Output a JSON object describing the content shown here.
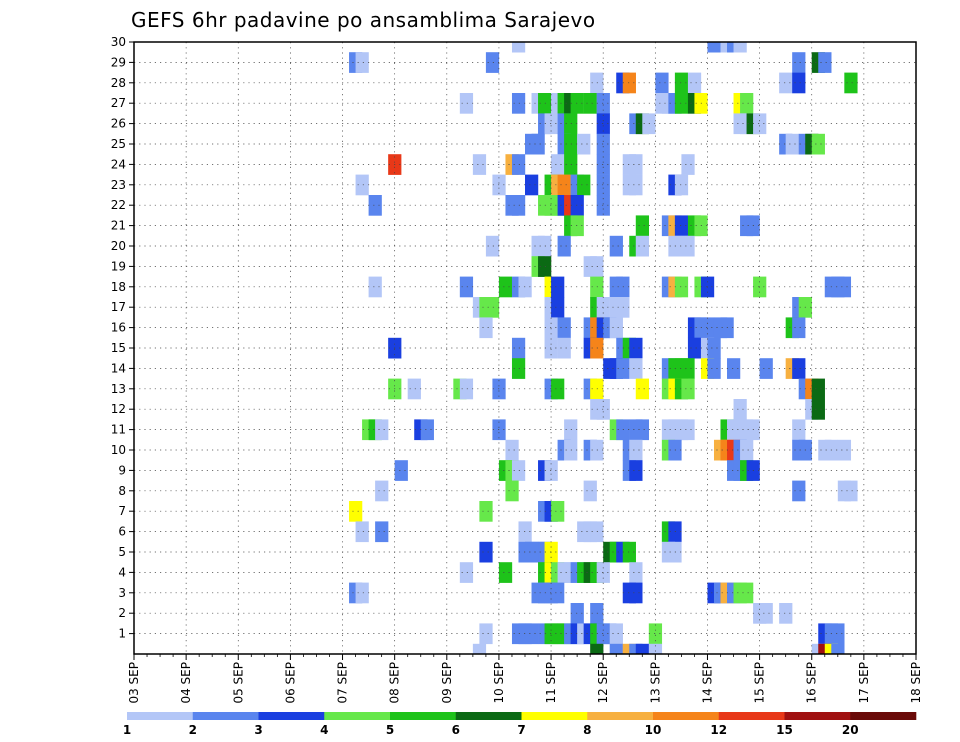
{
  "chart_data": {
    "type": "heatmap",
    "title": "GEFS 6hr padavine po ansamblima Sarajevo",
    "xlabel": "",
    "ylabel": "",
    "x_ticks": [
      "03 SEP",
      "04 SEP",
      "05 SEP",
      "06 SEP",
      "07 SEP",
      "08 SEP",
      "09 SEP",
      "10 SEP",
      "11 SEP",
      "12 SEP",
      "13 SEP",
      "14 SEP",
      "15 SEP",
      "16 SEP",
      "17 SEP",
      "18 SEP"
    ],
    "y_ticks": [
      1,
      2,
      3,
      4,
      5,
      6,
      7,
      8,
      9,
      10,
      11,
      12,
      13,
      14,
      15,
      16,
      17,
      18,
      19,
      20,
      21,
      22,
      23,
      24,
      25,
      26,
      27,
      28,
      29,
      30
    ],
    "xlim_days": [
      0,
      15
    ],
    "ylim": [
      0,
      30
    ],
    "time_step_hours": 6,
    "grid": true,
    "colorbar": {
      "placement": "bottom",
      "bounds": [
        1,
        2,
        3,
        4,
        5,
        6,
        7,
        8,
        10,
        12,
        15,
        20
      ],
      "colors": [
        "#b3c6f7",
        "#5a85ee",
        "#1a3fe0",
        "#66e84a",
        "#1ec31a",
        "#0b6a14",
        "#ffff00",
        "#f7b040",
        "#f5841a",
        "#e83818",
        "#a01010",
        "#6a0a08"
      ]
    },
    "cells": [
      [
        58,
        30,
        0
      ],
      [
        88,
        30,
        1
      ],
      [
        90,
        30,
        0
      ],
      [
        91,
        30,
        1
      ],
      [
        92,
        30,
        0
      ],
      [
        33,
        29,
        1
      ],
      [
        34,
        29,
        0
      ],
      [
        54,
        29,
        1
      ],
      [
        101,
        29,
        1
      ],
      [
        104,
        29,
        5
      ],
      [
        105,
        29,
        1
      ],
      [
        70,
        28,
        0
      ],
      [
        74,
        28,
        2
      ],
      [
        75,
        28,
        8
      ],
      [
        80,
        28,
        1
      ],
      [
        83,
        28,
        4
      ],
      [
        85,
        28,
        0
      ],
      [
        99,
        28,
        0
      ],
      [
        101,
        28,
        2
      ],
      [
        109,
        28,
        4
      ],
      [
        50,
        27,
        0
      ],
      [
        58,
        27,
        1
      ],
      [
        61,
        27,
        0
      ],
      [
        62,
        27,
        4
      ],
      [
        64,
        27,
        0
      ],
      [
        65,
        27,
        4
      ],
      [
        66,
        27,
        5
      ],
      [
        67,
        27,
        4
      ],
      [
        69,
        27,
        4
      ],
      [
        71,
        27,
        1
      ],
      [
        80,
        27,
        0
      ],
      [
        81,
        27,
        0
      ],
      [
        82,
        27,
        1
      ],
      [
        83,
        27,
        4
      ],
      [
        85,
        27,
        5
      ],
      [
        86,
        27,
        6
      ],
      [
        92,
        27,
        6
      ],
      [
        93,
        27,
        3
      ],
      [
        62,
        26,
        1
      ],
      [
        63,
        26,
        0
      ],
      [
        65,
        26,
        1
      ],
      [
        66,
        26,
        4
      ],
      [
        71,
        26,
        2
      ],
      [
        76,
        26,
        1
      ],
      [
        77,
        26,
        5
      ],
      [
        78,
        26,
        0
      ],
      [
        92,
        26,
        0
      ],
      [
        93,
        26,
        0
      ],
      [
        94,
        26,
        5
      ],
      [
        95,
        26,
        0
      ],
      [
        60,
        25,
        1
      ],
      [
        61,
        25,
        1
      ],
      [
        65,
        25,
        1
      ],
      [
        66,
        25,
        4
      ],
      [
        68,
        25,
        0
      ],
      [
        71,
        25,
        1
      ],
      [
        99,
        25,
        1
      ],
      [
        100,
        25,
        0
      ],
      [
        102,
        25,
        1
      ],
      [
        103,
        25,
        5
      ],
      [
        104,
        25,
        3
      ],
      [
        39,
        24,
        9
      ],
      [
        52,
        24,
        0
      ],
      [
        57,
        24,
        7
      ],
      [
        58,
        24,
        1
      ],
      [
        64,
        24,
        0
      ],
      [
        66,
        24,
        4
      ],
      [
        71,
        24,
        1
      ],
      [
        75,
        24,
        0
      ],
      [
        76,
        24,
        0
      ],
      [
        84,
        24,
        0
      ],
      [
        34,
        23,
        0
      ],
      [
        55,
        23,
        0
      ],
      [
        60,
        23,
        2
      ],
      [
        63,
        23,
        4
      ],
      [
        64,
        23,
        7
      ],
      [
        65,
        23,
        8
      ],
      [
        67,
        23,
        1
      ],
      [
        68,
        23,
        4
      ],
      [
        71,
        23,
        1
      ],
      [
        75,
        23,
        0
      ],
      [
        76,
        23,
        0
      ],
      [
        82,
        23,
        2
      ],
      [
        83,
        23,
        0
      ],
      [
        36,
        22,
        1
      ],
      [
        57,
        22,
        1
      ],
      [
        58,
        22,
        1
      ],
      [
        62,
        22,
        3
      ],
      [
        63,
        22,
        3
      ],
      [
        64,
        22,
        3
      ],
      [
        65,
        22,
        2
      ],
      [
        66,
        22,
        9
      ],
      [
        67,
        22,
        2
      ],
      [
        71,
        22,
        1
      ],
      [
        66,
        21,
        4
      ],
      [
        67,
        21,
        3
      ],
      [
        77,
        21,
        4
      ],
      [
        81,
        21,
        1
      ],
      [
        82,
        21,
        7
      ],
      [
        83,
        21,
        2
      ],
      [
        85,
        21,
        4
      ],
      [
        86,
        21,
        3
      ],
      [
        93,
        21,
        1
      ],
      [
        94,
        21,
        1
      ],
      [
        54,
        20,
        0
      ],
      [
        61,
        20,
        0
      ],
      [
        62,
        20,
        0
      ],
      [
        65,
        20,
        1
      ],
      [
        73,
        20,
        1
      ],
      [
        76,
        20,
        4
      ],
      [
        77,
        20,
        0
      ],
      [
        82,
        20,
        0
      ],
      [
        83,
        20,
        0
      ],
      [
        84,
        20,
        0
      ],
      [
        61,
        19,
        3
      ],
      [
        62,
        19,
        5
      ],
      [
        69,
        19,
        0
      ],
      [
        70,
        19,
        0
      ],
      [
        36,
        18,
        0
      ],
      [
        50,
        18,
        1
      ],
      [
        56,
        18,
        4
      ],
      [
        58,
        18,
        1
      ],
      [
        59,
        18,
        0
      ],
      [
        63,
        18,
        6
      ],
      [
        64,
        18,
        2
      ],
      [
        70,
        18,
        3
      ],
      [
        73,
        18,
        1
      ],
      [
        74,
        18,
        1
      ],
      [
        81,
        18,
        1
      ],
      [
        82,
        18,
        7
      ],
      [
        83,
        18,
        3
      ],
      [
        86,
        18,
        3
      ],
      [
        87,
        18,
        2
      ],
      [
        95,
        18,
        3
      ],
      [
        106,
        18,
        1
      ],
      [
        107,
        18,
        1
      ],
      [
        108,
        18,
        1
      ],
      [
        52,
        17,
        0
      ],
      [
        53,
        17,
        3
      ],
      [
        54,
        17,
        3
      ],
      [
        63,
        17,
        0
      ],
      [
        64,
        17,
        2
      ],
      [
        70,
        17,
        4
      ],
      [
        71,
        17,
        0
      ],
      [
        73,
        17,
        0
      ],
      [
        74,
        17,
        0
      ],
      [
        101,
        17,
        1
      ],
      [
        102,
        17,
        3
      ],
      [
        53,
        16,
        0
      ],
      [
        63,
        16,
        0
      ],
      [
        65,
        16,
        1
      ],
      [
        69,
        16,
        1
      ],
      [
        70,
        16,
        8
      ],
      [
        71,
        16,
        2
      ],
      [
        72,
        16,
        1
      ],
      [
        73,
        16,
        0
      ],
      [
        85,
        16,
        2
      ],
      [
        86,
        16,
        1
      ],
      [
        87,
        16,
        1
      ],
      [
        89,
        16,
        1
      ],
      [
        90,
        16,
        1
      ],
      [
        100,
        16,
        4
      ],
      [
        101,
        16,
        1
      ],
      [
        39,
        15,
        2
      ],
      [
        58,
        15,
        1
      ],
      [
        63,
        15,
        0
      ],
      [
        65,
        15,
        0
      ],
      [
        69,
        15,
        2
      ],
      [
        70,
        15,
        8
      ],
      [
        74,
        15,
        1
      ],
      [
        75,
        15,
        4
      ],
      [
        76,
        15,
        2
      ],
      [
        85,
        15,
        2
      ],
      [
        86,
        15,
        2
      ],
      [
        87,
        15,
        0
      ],
      [
        88,
        15,
        1
      ],
      [
        58,
        14,
        4
      ],
      [
        72,
        14,
        2
      ],
      [
        73,
        14,
        2
      ],
      [
        74,
        14,
        1
      ],
      [
        76,
        14,
        0
      ],
      [
        81,
        14,
        1
      ],
      [
        82,
        14,
        4
      ],
      [
        83,
        14,
        4
      ],
      [
        84,
        14,
        4
      ],
      [
        87,
        14,
        6
      ],
      [
        88,
        14,
        1
      ],
      [
        91,
        14,
        1
      ],
      [
        96,
        14,
        1
      ],
      [
        100,
        14,
        7
      ],
      [
        101,
        14,
        2
      ],
      [
        39,
        13,
        3
      ],
      [
        42,
        13,
        0
      ],
      [
        49,
        13,
        3
      ],
      [
        50,
        13,
        0
      ],
      [
        55,
        13,
        1
      ],
      [
        63,
        13,
        1
      ],
      [
        64,
        13,
        4
      ],
      [
        69,
        13,
        1
      ],
      [
        70,
        13,
        6
      ],
      [
        77,
        13,
        6
      ],
      [
        81,
        13,
        3
      ],
      [
        82,
        13,
        6
      ],
      [
        83,
        13,
        4
      ],
      [
        84,
        13,
        3
      ],
      [
        102,
        13,
        1
      ],
      [
        103,
        13,
        8
      ],
      [
        104,
        13,
        5
      ],
      [
        70,
        12,
        0
      ],
      [
        71,
        12,
        0
      ],
      [
        92,
        12,
        0
      ],
      [
        103,
        12,
        0
      ],
      [
        104,
        12,
        5
      ],
      [
        35,
        11,
        3
      ],
      [
        36,
        11,
        4
      ],
      [
        37,
        11,
        0
      ],
      [
        43,
        11,
        2
      ],
      [
        44,
        11,
        1
      ],
      [
        55,
        11,
        1
      ],
      [
        66,
        11,
        0
      ],
      [
        73,
        11,
        3
      ],
      [
        74,
        11,
        1
      ],
      [
        76,
        11,
        1
      ],
      [
        77,
        11,
        1
      ],
      [
        81,
        11,
        0
      ],
      [
        82,
        11,
        0
      ],
      [
        83,
        11,
        0
      ],
      [
        84,
        11,
        0
      ],
      [
        90,
        11,
        4
      ],
      [
        91,
        11,
        0
      ],
      [
        92,
        11,
        0
      ],
      [
        93,
        11,
        0
      ],
      [
        94,
        11,
        0
      ],
      [
        101,
        11,
        0
      ],
      [
        57,
        10,
        0
      ],
      [
        65,
        10,
        1
      ],
      [
        66,
        10,
        0
      ],
      [
        69,
        10,
        1
      ],
      [
        70,
        10,
        0
      ],
      [
        75,
        10,
        1
      ],
      [
        76,
        10,
        0
      ],
      [
        81,
        10,
        3
      ],
      [
        82,
        10,
        1
      ],
      [
        89,
        10,
        7
      ],
      [
        90,
        10,
        8
      ],
      [
        91,
        10,
        9
      ],
      [
        92,
        10,
        1
      ],
      [
        93,
        10,
        0
      ],
      [
        101,
        10,
        1
      ],
      [
        102,
        10,
        1
      ],
      [
        105,
        10,
        0
      ],
      [
        106,
        10,
        0
      ],
      [
        108,
        10,
        0
      ],
      [
        40,
        9,
        1
      ],
      [
        56,
        9,
        4
      ],
      [
        57,
        9,
        3
      ],
      [
        58,
        9,
        0
      ],
      [
        62,
        9,
        2
      ],
      [
        63,
        9,
        0
      ],
      [
        75,
        9,
        1
      ],
      [
        76,
        9,
        2
      ],
      [
        91,
        9,
        1
      ],
      [
        92,
        9,
        1
      ],
      [
        93,
        9,
        4
      ],
      [
        94,
        9,
        2
      ],
      [
        37,
        8,
        0
      ],
      [
        57,
        8,
        3
      ],
      [
        69,
        8,
        0
      ],
      [
        101,
        8,
        1
      ],
      [
        108,
        8,
        0
      ],
      [
        109,
        8,
        0
      ],
      [
        33,
        7,
        6
      ],
      [
        53,
        7,
        3
      ],
      [
        62,
        7,
        1
      ],
      [
        63,
        7,
        2
      ],
      [
        64,
        7,
        3
      ],
      [
        34,
        6,
        0
      ],
      [
        37,
        6,
        1
      ],
      [
        59,
        6,
        0
      ],
      [
        68,
        6,
        0
      ],
      [
        69,
        6,
        0
      ],
      [
        70,
        6,
        0
      ],
      [
        81,
        6,
        4
      ],
      [
        82,
        6,
        2
      ],
      [
        53,
        5,
        2
      ],
      [
        59,
        5,
        1
      ],
      [
        60,
        5,
        1
      ],
      [
        61,
        5,
        1
      ],
      [
        62,
        5,
        1
      ],
      [
        63,
        5,
        6
      ],
      [
        72,
        5,
        5
      ],
      [
        73,
        5,
        4
      ],
      [
        74,
        5,
        2
      ],
      [
        75,
        5,
        4
      ],
      [
        81,
        5,
        0
      ],
      [
        82,
        5,
        0
      ],
      [
        50,
        4,
        0
      ],
      [
        56,
        4,
        4
      ],
      [
        62,
        4,
        4
      ],
      [
        63,
        4,
        6
      ],
      [
        64,
        4,
        3
      ],
      [
        65,
        4,
        0
      ],
      [
        66,
        4,
        0
      ],
      [
        67,
        4,
        1
      ],
      [
        68,
        4,
        4
      ],
      [
        69,
        4,
        5
      ],
      [
        70,
        4,
        4
      ],
      [
        71,
        4,
        0
      ],
      [
        76,
        4,
        0
      ],
      [
        33,
        3,
        1
      ],
      [
        34,
        3,
        0
      ],
      [
        61,
        3,
        1
      ],
      [
        62,
        3,
        1
      ],
      [
        63,
        3,
        1
      ],
      [
        64,
        3,
        1
      ],
      [
        75,
        3,
        2
      ],
      [
        76,
        3,
        2
      ],
      [
        88,
        3,
        2
      ],
      [
        89,
        3,
        1
      ],
      [
        90,
        3,
        7
      ],
      [
        91,
        3,
        1
      ],
      [
        92,
        3,
        3
      ],
      [
        93,
        3,
        3
      ],
      [
        67,
        2,
        1
      ],
      [
        70,
        2,
        1
      ],
      [
        95,
        2,
        0
      ],
      [
        96,
        2,
        0
      ],
      [
        99,
        2,
        0
      ],
      [
        53,
        1,
        0
      ],
      [
        58,
        1,
        1
      ],
      [
        59,
        1,
        1
      ],
      [
        60,
        1,
        1
      ],
      [
        62,
        1,
        1
      ],
      [
        63,
        1,
        4
      ],
      [
        64,
        1,
        4
      ],
      [
        65,
        1,
        4
      ],
      [
        66,
        1,
        1
      ],
      [
        67,
        1,
        2
      ],
      [
        68,
        1,
        0
      ],
      [
        69,
        1,
        2
      ],
      [
        70,
        1,
        4
      ],
      [
        71,
        1,
        1
      ],
      [
        72,
        1,
        1
      ],
      [
        73,
        1,
        0
      ],
      [
        79,
        1,
        3
      ],
      [
        105,
        1,
        2
      ],
      [
        106,
        1,
        1
      ],
      [
        107,
        1,
        1
      ],
      [
        52,
        0,
        0
      ],
      [
        70,
        0,
        5
      ],
      [
        73,
        0,
        1
      ],
      [
        75,
        0,
        7
      ],
      [
        76,
        0,
        1
      ],
      [
        77,
        0,
        2
      ],
      [
        79,
        0,
        0
      ],
      [
        104,
        0,
        0
      ],
      [
        105,
        0,
        10
      ],
      [
        106,
        0,
        6
      ],
      [
        107,
        0,
        1
      ]
    ]
  }
}
